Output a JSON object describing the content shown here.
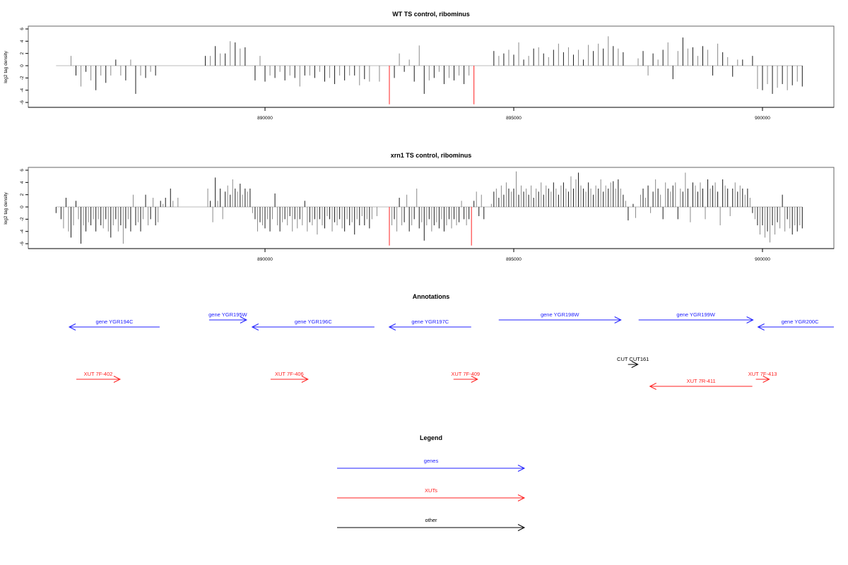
{
  "chart_data": [
    {
      "type": "bar",
      "title": "WT TS control, ribominus",
      "ylabel": "log2 tag density",
      "xlabel": "",
      "xlim": [
        885241,
        901435
      ],
      "ylim": [
        -6.8,
        6.46
      ],
      "yticks": [
        -6,
        -4,
        -2,
        0,
        2,
        4,
        6
      ],
      "xticks": [
        890000,
        895000,
        900000
      ],
      "x_start": 885800,
      "x_step": 100,
      "values": [
        0,
        0,
        0,
        1.6,
        -1.6,
        -3.4,
        -1,
        -2.4,
        -4,
        -1.6,
        -2.8,
        -1.6,
        1,
        -1.6,
        -2.4,
        1,
        -4.6,
        -1.6,
        -2,
        -1,
        -1.6,
        0,
        0,
        0,
        0,
        0,
        0,
        0,
        0,
        0,
        1.6,
        1.6,
        3.2,
        2,
        2,
        4,
        3.8,
        2.8,
        3,
        0,
        -2.4,
        1.6,
        -2.6,
        -1.6,
        -2,
        -1,
        -2.4,
        -1.6,
        -2,
        -3.4,
        -1.6,
        -1.6,
        -2,
        -1,
        -2.6,
        -2,
        -3,
        -1.6,
        -2.4,
        -1.6,
        -1.6,
        -3.2,
        -2.2,
        -2.6,
        0,
        -2.6,
        0,
        -6.5,
        -2,
        2,
        -1,
        1,
        -2.6,
        3.3,
        -4.6,
        -2.4,
        -2,
        -1,
        -3,
        -2,
        -2.4,
        -1.6,
        -3,
        -1.6,
        -6.5,
        0,
        0,
        0,
        2.4,
        1.6,
        2,
        2.6,
        1.8,
        3.8,
        1,
        1.6,
        2.8,
        3,
        2,
        1.4,
        2.6,
        3.6,
        2.2,
        3,
        1.8,
        2.6,
        1,
        3.4,
        2.4,
        3.6,
        2.8,
        4.8,
        3.2,
        2.8,
        2.2,
        0,
        0,
        1.2,
        2.4,
        -1.6,
        2,
        1,
        2.6,
        3.8,
        -2.2,
        2.4,
        4.6,
        2.8,
        3,
        1.6,
        3.2,
        2.6,
        -1.6,
        3.6,
        2.2,
        1.4,
        -1.8,
        1,
        1,
        0,
        1.6,
        -3.8,
        -4,
        -3,
        -4.6,
        -3.6,
        -3,
        -4,
        -3.2,
        -2.6,
        -3.4
      ]
    },
    {
      "type": "bar",
      "title": "xrn1 TS control, ribominus",
      "ylabel": "log2 tag density",
      "xlabel": "",
      "xlim": [
        885241,
        901435
      ],
      "ylim": [
        -6.8,
        6.46
      ],
      "yticks": [
        -6,
        -4,
        -2,
        0,
        2,
        4,
        6
      ],
      "xticks": [
        890000,
        895000,
        900000
      ],
      "x_start": 885800,
      "x_step": 50,
      "values": [
        -1,
        0,
        -2,
        -3.5,
        1.5,
        -4,
        -5,
        -3,
        1,
        -2,
        -6,
        -3,
        -4,
        -2.5,
        -3,
        -2,
        -4,
        -2,
        -3,
        -3.5,
        -2,
        -4,
        -5,
        -3,
        -2,
        -4,
        -3,
        -6,
        -3.5,
        -2,
        -4,
        2,
        -3,
        -2.5,
        -4,
        -2,
        2,
        -3,
        -2,
        1.5,
        -3,
        -2.5,
        1,
        0.5,
        1.5,
        0,
        3,
        1,
        0,
        1.5,
        0,
        0,
        0,
        0,
        0,
        0,
        0,
        0,
        0,
        0,
        0,
        3,
        1,
        -2.5,
        4.8,
        1,
        3,
        -2,
        2.5,
        3.5,
        2,
        4.5,
        3,
        2.5,
        3.8,
        2,
        3,
        2.5,
        3,
        -1,
        -2,
        -4,
        -2.5,
        -3,
        -3.5,
        -2,
        -4,
        -2,
        2.2,
        -3,
        -4,
        -2.5,
        -2,
        -3,
        -1.5,
        -4,
        -2,
        -3.5,
        -2,
        -3,
        1,
        -4,
        -2.5,
        -3,
        -2,
        -4.5,
        -2,
        -3,
        -3.5,
        -1.5,
        -2,
        -4,
        -2.5,
        -3,
        -2,
        -3.5,
        -4,
        -2,
        -3,
        -2.5,
        -4.5,
        -2,
        -3,
        -1.5,
        -3,
        -2,
        -3.5,
        -2,
        0,
        -1.5,
        0,
        0,
        0,
        0,
        -6.5,
        -3,
        -2,
        -4,
        1.5,
        -3,
        -2.5,
        2,
        -4,
        -3,
        -2,
        3,
        -3.5,
        -2.5,
        -5.5,
        -3,
        -2,
        -4,
        -3,
        -2.5,
        -3.5,
        -2,
        -4,
        -3,
        -2,
        -3.5,
        -2,
        -3,
        -2.5,
        1,
        -2,
        -3,
        -2,
        -6.5,
        1,
        2.5,
        -1.5,
        2,
        -2,
        0,
        0,
        0.5,
        2.5,
        3,
        1.5,
        3.5,
        2,
        4,
        3,
        2.5,
        3,
        5.8,
        2,
        3.5,
        2.5,
        3,
        2,
        3.5,
        1.5,
        3,
        2.5,
        4,
        2,
        3.5,
        3,
        2.5,
        4,
        3,
        2,
        3.5,
        4,
        3,
        2.5,
        5,
        3,
        4.5,
        5.6,
        3.5,
        3,
        2.5,
        4,
        3,
        2,
        3.5,
        3,
        4.5,
        2.5,
        3.5,
        3,
        4,
        4.2,
        3,
        4.5,
        3,
        2,
        1,
        -2.2,
        0,
        0.5,
        -1.8,
        0,
        2,
        3,
        1.5,
        3.5,
        -1,
        2.5,
        4.5,
        3,
        2,
        -2,
        4,
        3,
        2.5,
        3.5,
        4,
        -2,
        3,
        2.5,
        5.6,
        3,
        -2.5,
        4,
        3.5,
        2.5,
        4,
        3,
        -2,
        4.5,
        3,
        3.5,
        4,
        2.5,
        -3,
        4.5,
        3.5,
        3,
        -1.5,
        3,
        4,
        2.5,
        3.5,
        3,
        2,
        3,
        1.5,
        -1,
        -2,
        -3,
        -4.5,
        -3,
        -5,
        -4,
        -5.8,
        -3,
        -4.5,
        -2.5,
        -3.5,
        2,
        -4,
        -2,
        -3.5,
        -4.5,
        -3,
        -4,
        -3,
        -3.5
      ]
    }
  ],
  "annotations": {
    "title": "Annotations",
    "features": [
      {
        "label": "gene YGR194C",
        "type": "genes",
        "start": 886065,
        "end": 887882,
        "strand": "-"
      },
      {
        "label": "gene YGR195W",
        "type": "genes",
        "start": 888876,
        "end": 889629,
        "strand": "+"
      },
      {
        "label": "gene YGR196C",
        "type": "genes",
        "start": 889742,
        "end": 892199,
        "strand": "-"
      },
      {
        "label": "gene YGR197C",
        "type": "genes",
        "start": 892497,
        "end": 894144,
        "strand": "-"
      },
      {
        "label": "gene YGR198W",
        "type": "genes",
        "start": 894698,
        "end": 897155,
        "strand": "+"
      },
      {
        "label": "gene YGR199W",
        "type": "genes",
        "start": 897510,
        "end": 899810,
        "strand": "+"
      },
      {
        "label": "gene YGR200C",
        "type": "genes",
        "start": 899910,
        "end": 901600,
        "strand": "-"
      },
      {
        "label": "XUT 7F-402",
        "type": "XUTs",
        "start": 886207,
        "end": 887087,
        "strand": "+"
      },
      {
        "label": "XUT 7F-406",
        "type": "XUTs",
        "start": 890112,
        "end": 890864,
        "strand": "+"
      },
      {
        "label": "XUT 7F-409",
        "type": "XUTs",
        "start": 893789,
        "end": 894272,
        "strand": "+"
      },
      {
        "label": "CUT CUT161",
        "type": "other",
        "start": 897297,
        "end": 897496,
        "strand": "+"
      },
      {
        "label": "XUT 7R-411",
        "type": "XUTs",
        "start": 897737,
        "end": 899796,
        "strand": "-"
      },
      {
        "label": "XUT 7F-413",
        "type": "XUTs",
        "start": 899867,
        "end": 900137,
        "strand": "+"
      }
    ]
  },
  "legend": {
    "title": "Legend",
    "entries": [
      {
        "label": "genes",
        "color": "#2020ff"
      },
      {
        "label": "XUTs",
        "color": "#ff2020"
      },
      {
        "label": "other",
        "color": "#000000"
      }
    ]
  },
  "colors": {
    "bar_dark": "#1a1a1a",
    "bar_light": "#8a8a8a",
    "clipped": "#ff2020",
    "baseline": "#bbbbbb"
  }
}
